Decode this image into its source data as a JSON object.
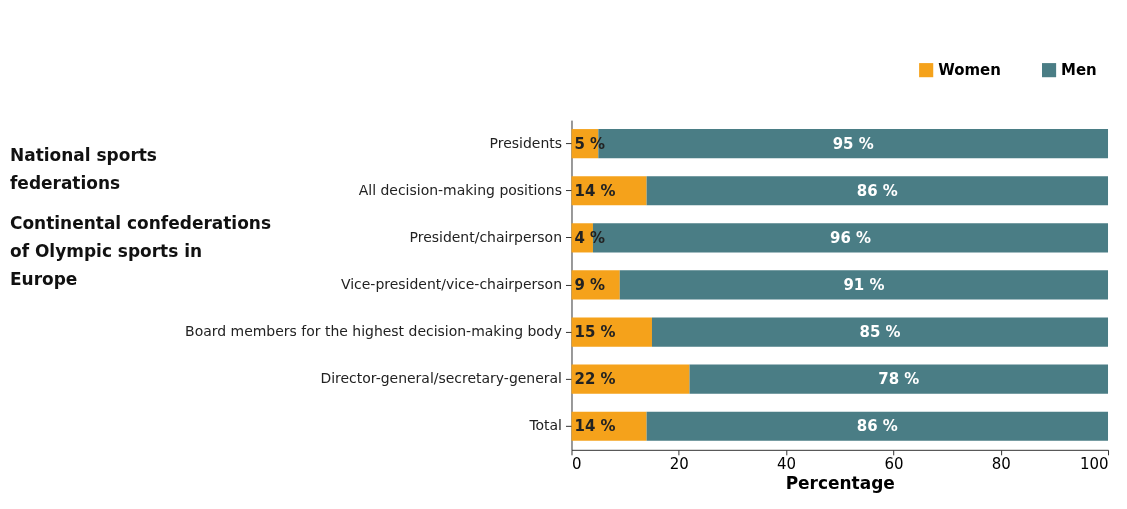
{
  "chart_data": {
    "type": "bar",
    "orientation": "horizontal",
    "stacked": true,
    "categories": [
      "Presidents",
      "All decision-making positions",
      "President/chairperson",
      "Vice-president/vice-chairperson",
      "Board members for the highest decision-making body",
      "Director-general/secretary-general",
      "Total"
    ],
    "series": [
      {
        "name": "Women",
        "color": "#f5a21b",
        "values": [
          5,
          14,
          4,
          9,
          15,
          22,
          14
        ],
        "value_labels": [
          "5 %",
          "14 %",
          "4 %",
          "9 %",
          "15 %",
          "22 %",
          "14 %"
        ]
      },
      {
        "name": "Men",
        "color": "#4a7d85",
        "values": [
          95,
          86,
          96,
          91,
          85,
          78,
          86
        ],
        "value_labels": [
          "95 %",
          "86 %",
          "96 %",
          "91 %",
          "85 %",
          "78 %",
          "86 %"
        ]
      }
    ],
    "xlim": [
      0,
      100
    ],
    "xticks": [
      0,
      20,
      40,
      60,
      80,
      100
    ],
    "xlabel": "Percentage",
    "annotations": [
      "National sports federations",
      "Continental confederations of Olympic sports in Europe"
    ],
    "legend": "top right",
    "grid": false
  }
}
